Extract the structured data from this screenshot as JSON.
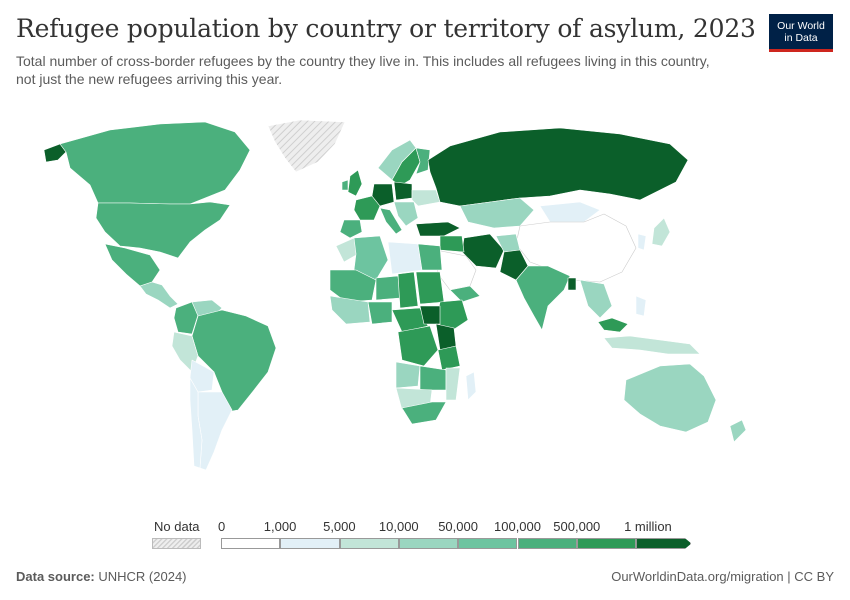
{
  "header": {
    "title": "Refugee population by country or territory of asylum, 2023",
    "subtitle": "Total number of cross-border refugees by the country they live in. This includes all refugees living in this country, not just the new refugees arriving this year.",
    "logo_line1": "Our World",
    "logo_line2": "in Data"
  },
  "legend": {
    "no_data_label": "No data",
    "bins": [
      {
        "label": "0",
        "color": "#ffffff"
      },
      {
        "label": "1,000",
        "color": "#e2f0f7"
      },
      {
        "label": "5,000",
        "color": "#c2e5d8"
      },
      {
        "label": "10,000",
        "color": "#9ad6c0"
      },
      {
        "label": "50,000",
        "color": "#6dc4a0"
      },
      {
        "label": "100,000",
        "color": "#4bb07d"
      },
      {
        "label": "500,000",
        "color": "#2e9a57"
      },
      {
        "label": "1 million",
        "color": "#0b5f2a"
      }
    ]
  },
  "footer": {
    "source_label": "Data source:",
    "source_value": "UNHCR (2024)",
    "url_license": "OurWorldinData.org/migration | CC BY"
  },
  "colors": {
    "ocean": "#ffffff",
    "no_data_hatch": "#cfcfcf",
    "border": "#ffffff"
  }
}
